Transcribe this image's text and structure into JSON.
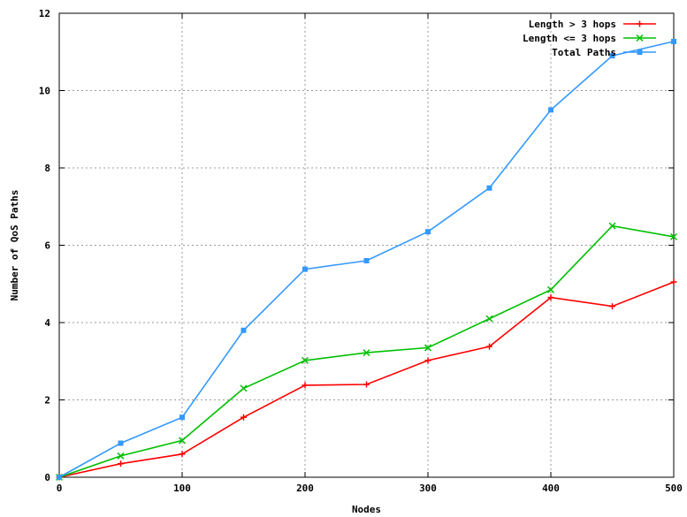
{
  "chart_data": {
    "type": "line",
    "title": "",
    "xlabel": "Nodes",
    "ylabel": "Number of QoS Paths",
    "xlim": [
      0,
      500
    ],
    "ylim": [
      0,
      12
    ],
    "xticks": [
      0,
      100,
      200,
      300,
      400,
      500
    ],
    "yticks": [
      0,
      2,
      4,
      6,
      8,
      10,
      12
    ],
    "grid": true,
    "legend_position": "top-right",
    "x": [
      0,
      50,
      100,
      150,
      200,
      250,
      300,
      350,
      400,
      450,
      500
    ],
    "series": [
      {
        "name": "Length > 3 hops",
        "color": "#ff0000",
        "marker": "plus",
        "values": [
          0,
          0.35,
          0.6,
          1.55,
          2.38,
          2.4,
          3.02,
          3.38,
          4.65,
          4.42,
          5.05
        ]
      },
      {
        "name": "Length <= 3 hops",
        "color": "#00c000",
        "marker": "cross",
        "values": [
          0,
          0.55,
          0.95,
          2.3,
          3.02,
          3.22,
          3.35,
          4.1,
          4.85,
          6.5,
          6.22
        ]
      },
      {
        "name": "Total Paths",
        "color": "#3399ff",
        "marker": "square",
        "values": [
          0,
          0.88,
          1.55,
          3.8,
          5.38,
          5.6,
          6.35,
          7.48,
          9.5,
          10.9,
          11.27
        ]
      }
    ]
  }
}
